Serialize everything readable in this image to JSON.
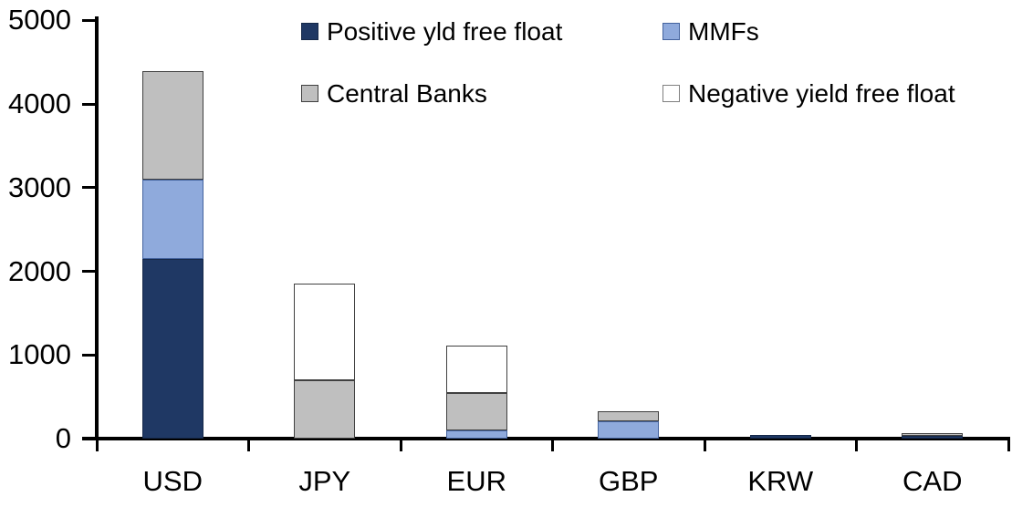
{
  "chart_data": {
    "type": "bar",
    "stacked": true,
    "title": "",
    "xlabel": "",
    "ylabel": "",
    "categories": [
      "USD",
      "JPY",
      "EUR",
      "GBP",
      "KRW",
      "CAD"
    ],
    "series": [
      {
        "name": "Positive yld free float",
        "color": "#1F3864",
        "border_color": "#16294a",
        "values": [
          2150,
          0,
          0,
          0,
          40,
          30
        ]
      },
      {
        "name": "MMFs",
        "color": "#8FAADC",
        "border_color": "#44639e",
        "values": [
          950,
          0,
          100,
          210,
          0,
          0
        ]
      },
      {
        "name": "Central Banks",
        "color": "#BFBFBF",
        "border_color": "#404040",
        "values": [
          1290,
          700,
          440,
          120,
          0,
          30
        ]
      },
      {
        "name": "Negative yield free float",
        "color": "#FFFFFF",
        "border_color": "#404040",
        "values": [
          0,
          1150,
          570,
          0,
          0,
          0
        ]
      }
    ],
    "totals": {
      "USD": 4390,
      "JPY": 1850,
      "EUR": 1110,
      "GBP": 330,
      "KRW": 40,
      "CAD": 60
    },
    "ylim": [
      0,
      5000
    ],
    "yticks": [
      "0",
      "1000",
      "2000",
      "3000",
      "4000",
      "5000"
    ],
    "grid": false,
    "legend_position": "top",
    "legend_columns": 2,
    "axis_color": "#000000",
    "background_color": "#ffffff"
  }
}
